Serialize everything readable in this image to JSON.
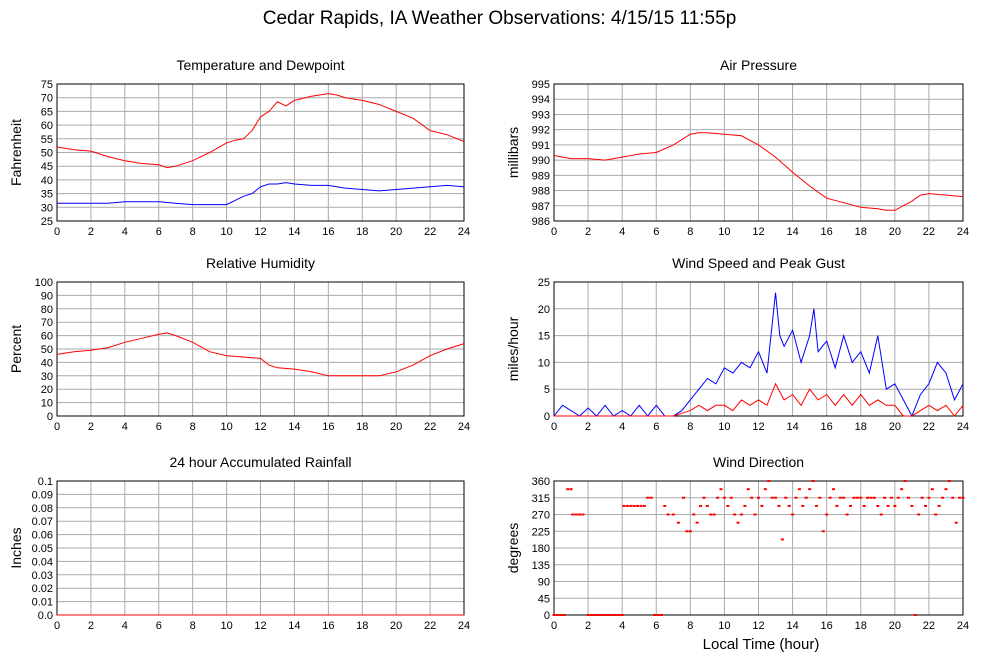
{
  "title": "Cedar Rapids, IA Weather Observations: 4/15/15 11:55p",
  "xlabel": "Local Time (hour)",
  "colors": {
    "red": "#ff0000",
    "blue": "#0000ff",
    "grid": "#aaaaaa"
  },
  "chart_data": [
    {
      "type": "line",
      "title": "Temperature and Dewpoint",
      "ylabel": "Fahrenheit",
      "xlim": [
        0,
        24
      ],
      "ylim": [
        25,
        75
      ],
      "xticks": [
        0,
        2,
        4,
        6,
        8,
        10,
        12,
        14,
        16,
        18,
        20,
        22,
        24
      ],
      "yticks": [
        25,
        30,
        35,
        40,
        45,
        50,
        55,
        60,
        65,
        70,
        75
      ],
      "grid": true,
      "series": [
        {
          "color": "#ff0000",
          "x": [
            0,
            1,
            2,
            3,
            4,
            5,
            6,
            6.5,
            7,
            8,
            9,
            10,
            10.5,
            11,
            11.5,
            12,
            12.5,
            13,
            13.5,
            14,
            15,
            16,
            16.5,
            17,
            18,
            19,
            20,
            21,
            22,
            23,
            24
          ],
          "y": [
            52,
            51,
            50.5,
            48.5,
            47,
            46,
            45.5,
            44.5,
            45,
            47,
            50,
            53.5,
            54.5,
            55,
            58,
            63,
            65,
            68.5,
            67,
            69,
            70.5,
            71.5,
            71,
            70,
            69,
            67.5,
            65,
            62.5,
            58,
            56.5,
            54
          ]
        },
        {
          "color": "#0000ff",
          "x": [
            0,
            1,
            2,
            3,
            4,
            5,
            6,
            7,
            8,
            9,
            10,
            11,
            11.5,
            12,
            12.5,
            13,
            13.5,
            14,
            15,
            16,
            17,
            18,
            19,
            20,
            21,
            22,
            23,
            24
          ],
          "y": [
            31.5,
            31.5,
            31.5,
            31.5,
            32,
            32,
            32,
            31.5,
            31,
            31,
            31,
            34,
            35,
            37.5,
            38.5,
            38.5,
            39,
            38.5,
            38,
            38,
            37,
            36.5,
            36,
            36.5,
            37,
            37.5,
            38,
            37.5
          ]
        }
      ]
    },
    {
      "type": "line",
      "title": "Air Pressure",
      "ylabel": "millibars",
      "xlim": [
        0,
        24
      ],
      "ylim": [
        986,
        995
      ],
      "xticks": [
        0,
        2,
        4,
        6,
        8,
        10,
        12,
        14,
        16,
        18,
        20,
        22,
        24
      ],
      "yticks": [
        986,
        987,
        988,
        989,
        990,
        991,
        992,
        993,
        994,
        995
      ],
      "grid": true,
      "series": [
        {
          "color": "#ff0000",
          "x": [
            0,
            1,
            2,
            3,
            4,
            5,
            6,
            7,
            8,
            8.5,
            9,
            10,
            11,
            12,
            13,
            14,
            15,
            16,
            17,
            18,
            19,
            19.5,
            20,
            21,
            21.5,
            22,
            23,
            24
          ],
          "y": [
            990.3,
            990.1,
            990.1,
            990,
            990.2,
            990.4,
            990.5,
            991,
            991.7,
            991.8,
            991.8,
            991.7,
            991.6,
            991,
            990.2,
            989.2,
            988.3,
            987.5,
            987.2,
            986.9,
            986.8,
            986.7,
            986.7,
            987.3,
            987.7,
            987.8,
            987.7,
            987.6
          ]
        }
      ]
    },
    {
      "type": "line",
      "title": "Relative Humidity",
      "ylabel": "Percent",
      "xlim": [
        0,
        24
      ],
      "ylim": [
        0,
        100
      ],
      "xticks": [
        0,
        2,
        4,
        6,
        8,
        10,
        12,
        14,
        16,
        18,
        20,
        22,
        24
      ],
      "yticks": [
        0,
        10,
        20,
        30,
        40,
        50,
        60,
        70,
        80,
        90,
        100
      ],
      "grid": true,
      "series": [
        {
          "color": "#ff0000",
          "x": [
            0,
            1,
            2,
            3,
            4,
            5,
            6,
            6.5,
            7,
            8,
            9,
            10,
            11,
            12,
            12.5,
            13,
            14,
            15,
            16,
            17,
            18,
            19,
            20,
            21,
            22,
            23,
            24
          ],
          "y": [
            46,
            48,
            49,
            51,
            55,
            58,
            61,
            62,
            60,
            55,
            48,
            45,
            44,
            43,
            38,
            36,
            35,
            33,
            30,
            30,
            30,
            30,
            33,
            38,
            45,
            50,
            54
          ]
        }
      ]
    },
    {
      "type": "line",
      "title": "Wind Speed and Peak Gust",
      "ylabel": "miles/hour",
      "xlim": [
        0,
        24
      ],
      "ylim": [
        0,
        25
      ],
      "xticks": [
        0,
        2,
        4,
        6,
        8,
        10,
        12,
        14,
        16,
        18,
        20,
        22,
        24
      ],
      "yticks": [
        0,
        5,
        10,
        15,
        20,
        25
      ],
      "grid": true,
      "series": [
        {
          "color": "#0000ff",
          "x": [
            0,
            0.5,
            1,
            1.5,
            2,
            2.5,
            3,
            3.5,
            4,
            4.5,
            5,
            5.5,
            6,
            6.5,
            7,
            7.5,
            8,
            8.5,
            9,
            9.5,
            10,
            10.5,
            11,
            11.5,
            12,
            12.5,
            13,
            13.25,
            13.5,
            14,
            14.5,
            15,
            15.25,
            15.5,
            16,
            16.5,
            17,
            17.5,
            18,
            18.5,
            19,
            19.5,
            20,
            20.5,
            21,
            21.5,
            22,
            22.5,
            23,
            23.5,
            24
          ],
          "y": [
            0,
            2,
            1,
            0,
            1.5,
            0,
            2,
            0,
            1,
            0,
            2,
            0,
            2,
            0,
            0,
            1,
            3,
            5,
            7,
            6,
            9,
            8,
            10,
            9,
            12,
            8,
            23,
            15,
            13,
            16,
            10,
            15,
            20,
            12,
            14,
            9,
            15,
            10,
            12,
            8,
            15,
            5,
            6,
            3,
            0,
            4,
            6,
            10,
            8,
            3,
            6
          ]
        },
        {
          "color": "#ff0000",
          "x": [
            0,
            6,
            7,
            7.5,
            8,
            8.5,
            9,
            9.5,
            10,
            10.5,
            11,
            11.5,
            12,
            12.5,
            13,
            13.5,
            14,
            14.5,
            15,
            15.5,
            16,
            16.5,
            17,
            17.5,
            18,
            18.5,
            19,
            19.5,
            20,
            20.5,
            21,
            21.5,
            22,
            22.5,
            23,
            23.5,
            24
          ],
          "y": [
            0,
            0,
            0,
            0.5,
            1,
            2,
            1,
            2,
            2,
            1,
            3,
            2,
            3,
            2,
            6,
            3,
            4,
            2,
            5,
            3,
            4,
            2,
            4,
            2,
            4,
            2,
            3,
            2,
            2,
            0,
            0,
            1,
            2,
            1,
            2,
            0,
            2
          ]
        }
      ]
    },
    {
      "type": "line",
      "title": "24 hour Accumulated Rainfall",
      "ylabel": "Inches",
      "xlim": [
        0,
        24
      ],
      "ylim": [
        0,
        0.1
      ],
      "xticks": [
        0,
        2,
        4,
        6,
        8,
        10,
        12,
        14,
        16,
        18,
        20,
        22,
        24
      ],
      "yticks": [
        "0.0",
        "0.01",
        "0.02",
        "0.03",
        "0.04",
        "0.05",
        "0.06",
        "0.07",
        "0.08",
        "0.09",
        "0.1"
      ],
      "grid": true,
      "series": [
        {
          "color": "#ff0000",
          "x": [
            0,
            24
          ],
          "y": [
            0,
            0
          ]
        }
      ]
    },
    {
      "type": "scatter",
      "title": "Wind Direction",
      "ylabel": "degrees",
      "xlim": [
        0,
        24
      ],
      "ylim": [
        0,
        360
      ],
      "xticks": [
        0,
        2,
        4,
        6,
        8,
        10,
        12,
        14,
        16,
        18,
        20,
        22,
        24
      ],
      "yticks": [
        0,
        45,
        90,
        135,
        180,
        225,
        270,
        315,
        360
      ],
      "grid": true,
      "series": [
        {
          "color": "#ff0000",
          "x": [
            0,
            0.2,
            0.4,
            0.6,
            0.8,
            1.0,
            1.1,
            1.3,
            1.5,
            1.7,
            2.0,
            2.2,
            2.4,
            2.6,
            2.8,
            3.0,
            3.2,
            3.4,
            3.6,
            3.8,
            4.0,
            4.1,
            4.3,
            4.5,
            4.7,
            4.9,
            5.1,
            5.3,
            5.5,
            5.7,
            5.9,
            6.1,
            6.3,
            6.5,
            6.7,
            7.0,
            7.3,
            7.6,
            7.8,
            8.0,
            8.2,
            8.4,
            8.6,
            8.8,
            9.0,
            9.2,
            9.4,
            9.6,
            9.8,
            10.0,
            10.2,
            10.4,
            10.6,
            10.8,
            11.0,
            11.2,
            11.4,
            11.6,
            11.8,
            12.0,
            12.2,
            12.4,
            12.6,
            12.8,
            13.0,
            13.2,
            13.4,
            13.6,
            13.8,
            14.0,
            14.2,
            14.4,
            14.6,
            14.8,
            15.0,
            15.2,
            15.4,
            15.6,
            15.8,
            16.0,
            16.2,
            16.4,
            16.6,
            16.8,
            17.0,
            17.2,
            17.4,
            17.6,
            17.8,
            18.0,
            18.2,
            18.4,
            18.6,
            18.8,
            19.0,
            19.2,
            19.4,
            19.6,
            19.8,
            20.0,
            20.2,
            20.4,
            20.6,
            20.8,
            21.0,
            21.2,
            21.4,
            21.6,
            21.8,
            22.0,
            22.2,
            22.4,
            22.6,
            22.8,
            23.0,
            23.2,
            23.4,
            23.6,
            23.8,
            24.0
          ],
          "y": [
            0,
            0,
            0,
            0,
            338,
            338,
            270,
            270,
            270,
            270,
            0,
            0,
            0,
            0,
            0,
            0,
            0,
            0,
            0,
            0,
            0,
            293,
            293,
            293,
            293,
            293,
            293,
            293,
            315,
            315,
            0,
            0,
            0,
            293,
            270,
            270,
            248,
            315,
            225,
            225,
            270,
            248,
            293,
            315,
            293,
            270,
            270,
            315,
            338,
            315,
            293,
            315,
            270,
            248,
            270,
            293,
            338,
            315,
            270,
            315,
            293,
            338,
            360,
            315,
            315,
            293,
            203,
            315,
            293,
            270,
            315,
            338,
            293,
            315,
            338,
            360,
            293,
            315,
            225,
            270,
            315,
            338,
            293,
            315,
            315,
            270,
            293,
            315,
            315,
            315,
            293,
            315,
            315,
            315,
            293,
            270,
            315,
            293,
            315,
            293,
            315,
            338,
            360,
            315,
            293,
            0,
            270,
            315,
            293,
            315,
            338,
            270,
            293,
            315,
            338,
            360,
            315,
            248,
            315,
            315
          ]
        }
      ]
    }
  ]
}
